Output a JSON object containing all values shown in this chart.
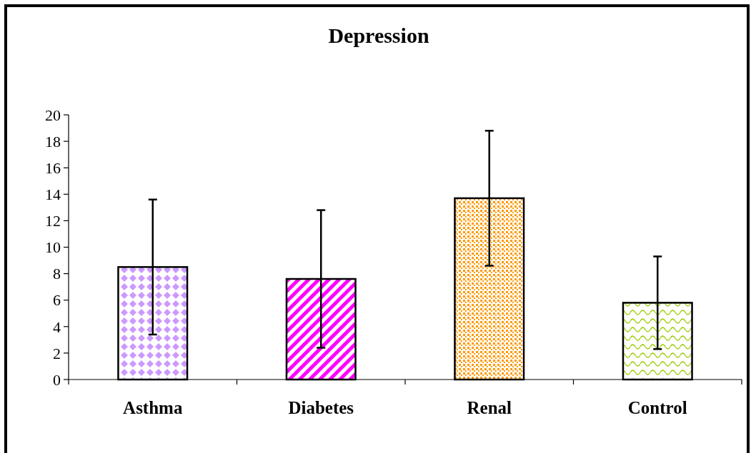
{
  "chart_data": {
    "type": "bar",
    "title": "Depression",
    "categories": [
      "Asthma",
      "Diabetes",
      "Renal",
      "Control"
    ],
    "values": [
      8.5,
      7.6,
      13.7,
      5.8
    ],
    "errors": [
      5.1,
      5.2,
      5.1,
      3.5
    ],
    "colors": [
      "#cc99ff",
      "#ff00ff",
      "#ff9900",
      "#99cc00"
    ],
    "ylim": [
      0,
      20
    ],
    "yticks": [
      0,
      2,
      4,
      6,
      8,
      10,
      12,
      14,
      16,
      18,
      20
    ],
    "grid": false
  }
}
